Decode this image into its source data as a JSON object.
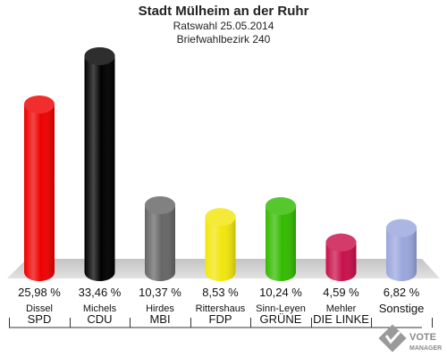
{
  "header": {
    "title": "Stadt Mülheim an der Ruhr",
    "subtitle1": "Ratswahl 25.05.2014",
    "subtitle2": "Briefwahlbezirk 240"
  },
  "logo": {
    "line1": "VOTE",
    "line2": "MANAGER"
  },
  "chart_data": {
    "type": "bar",
    "title": "Stadt Mülheim an der Ruhr",
    "subtitle": "Ratswahl 25.05.2014 / Briefwahlbezirk 240",
    "categories": [
      "SPD",
      "CDU",
      "MBI",
      "FDP",
      "GRÜNE",
      "DIE LINKE",
      "Sonstige"
    ],
    "candidates": [
      "Dissel",
      "Michels",
      "Hirdes",
      "Rittershaus",
      "Sinn-Leyen",
      "Mehler",
      ""
    ],
    "values": [
      25.98,
      33.46,
      10.37,
      8.53,
      10.24,
      4.59,
      6.82
    ],
    "labels": [
      "25,98 %",
      "33,46 %",
      "10,37 %",
      "8,53 %",
      "10,24 %",
      "4,59 %",
      "6,82 %"
    ],
    "colors": [
      "#ee0000",
      "#000000",
      "#666666",
      "#f2e60c",
      "#33bb00",
      "#c8104a",
      "#9aa6dd"
    ],
    "ylim": [
      0,
      33.46
    ]
  }
}
